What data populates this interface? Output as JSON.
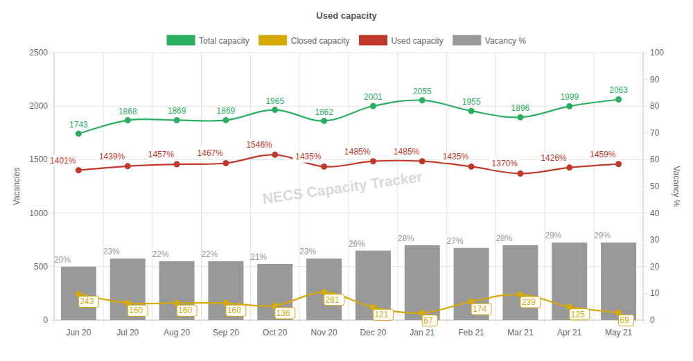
{
  "chart_data": {
    "type": "line",
    "title": "Used capacity",
    "y_label": "Vacancies",
    "y2_label": "Vacancy %",
    "annotations": [
      "NECS Capacity Tracker"
    ],
    "categories": [
      "Jun 20",
      "Jul 20",
      "Aug 20",
      "Sep 20",
      "Oct 20",
      "Nov 20",
      "Dec 20",
      "Jan 21",
      "Feb 21",
      "Mar 21",
      "Apr 21",
      "May 21"
    ],
    "series": [
      {
        "name": "Total capacity",
        "color": "#2aaf62",
        "type": "line",
        "marker": "circle",
        "values": [
          1743,
          1868,
          1869,
          1869,
          1965,
          1862,
          2001,
          2055,
          1955,
          1896,
          1999,
          2063
        ]
      },
      {
        "name": "Closed capacity",
        "color": "#d6aa06",
        "type": "line",
        "marker": "circle",
        "values": [
          243,
          160,
          160,
          160,
          136,
          261,
          121,
          67,
          174,
          239,
          125,
          69
        ]
      },
      {
        "name": "Used capacity",
        "color": "#c0392b",
        "type": "line",
        "marker": "circle",
        "values": [
          1401,
          1439,
          1457,
          1467,
          1546,
          1435,
          1485,
          1485,
          1435,
          1370,
          1426,
          1459
        ],
        "value_labels": [
          "1401%",
          "1439%",
          "1457%",
          "1467%",
          "1546%",
          "1435%",
          "1485%",
          "1485%",
          "1435%",
          "1370%",
          "1426%",
          "1459%"
        ]
      },
      {
        "name": "Vacancy %",
        "color": "#999999",
        "type": "bar",
        "axis": "y2",
        "values": [
          20,
          23,
          22,
          22,
          21,
          23,
          26,
          28,
          27,
          28,
          29,
          29
        ],
        "value_labels": [
          "20%",
          "23%",
          "22%",
          "22%",
          "21%",
          "23%",
          "26%",
          "28%",
          "27%",
          "28%",
          "29%",
          "29%"
        ]
      }
    ],
    "ylim": [
      0,
      2500
    ],
    "yticks": [
      0,
      500,
      1000,
      1500,
      2000,
      2500
    ],
    "y2lim": [
      0,
      100
    ],
    "y2ticks": [
      0,
      10,
      20,
      30,
      40,
      50,
      60,
      70,
      80,
      90,
      100
    ],
    "grid": true,
    "legend": "top",
    "data_labels": true
  }
}
